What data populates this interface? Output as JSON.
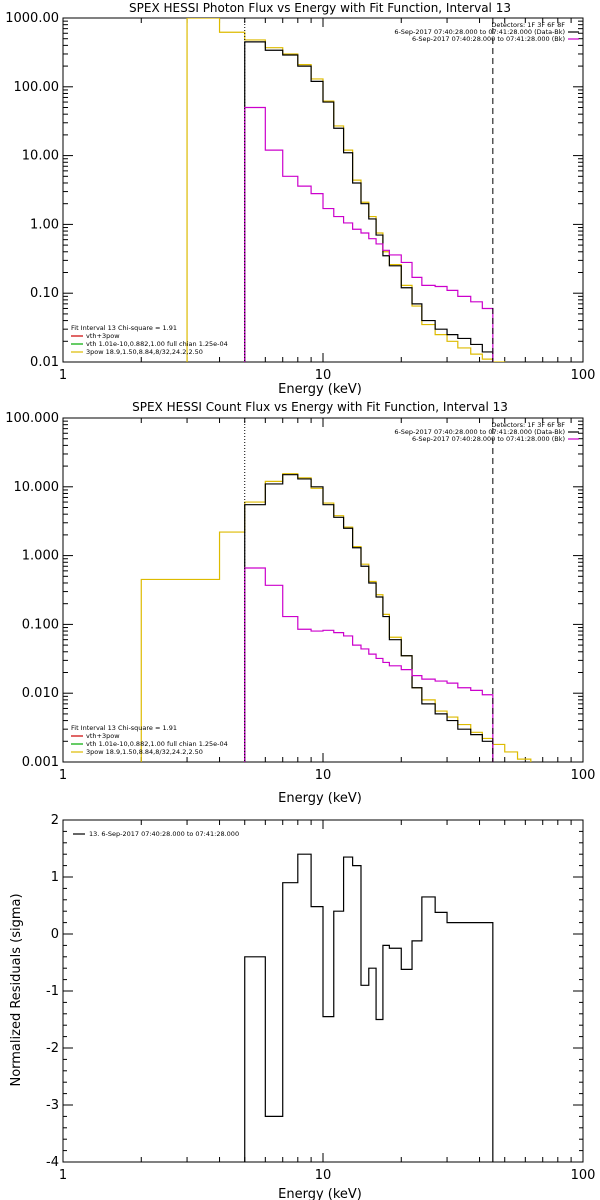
{
  "chart_data": [
    {
      "type": "line",
      "step": true,
      "title": "SPEX HESSI Photon Flux vs Energy with Fit Function, Interval 13",
      "xlabel": "Energy (keV)",
      "ylabel": "",
      "xscale": "log",
      "yscale": "log",
      "xlim": [
        1,
        100
      ],
      "ylim": [
        0.01,
        1000
      ],
      "xticks": [
        1,
        10,
        100
      ],
      "xticklabels": [
        "1",
        "10",
        "100"
      ],
      "yticks": [
        0.01,
        0.1,
        1,
        10,
        100,
        1000
      ],
      "yticklabels": [
        "0.01",
        "0.10",
        "1.00",
        "10.00",
        "100.00",
        "1000.00"
      ],
      "vlines": [
        {
          "x": 5.0,
          "style": "dotted",
          "color": "#000000"
        },
        {
          "x": 45.0,
          "style": "dashed",
          "color": "#000000"
        }
      ],
      "legend_top": [
        "Detectors: 1F 3F 6F 8F",
        "6-Sep-2017 07:40:28.000 to 07:41:28.000 (Data-Bk)",
        "6-Sep-2017 07:40:28.000 to 07:41:28.000 (Bk)"
      ],
      "legend_top_colors": [
        "#000000",
        "#000000",
        "#cc00cc"
      ],
      "legend_bottom": [
        {
          "text": "Fit Interval 13   Chi-square = 1.91",
          "color": ""
        },
        {
          "text": "vth+3pow",
          "color": "#cc0000"
        },
        {
          "text": "vth 1.01e-10,0.882,1.00  full chian 1.25e-04",
          "color": "#00aa00"
        },
        {
          "text": "3pow 18.9,1.50,8.84,8/32,24.2,2.50",
          "color": "#ddbb00"
        }
      ],
      "series": [
        {
          "name": "6-Sep-2017 07:40:28.000 to 07:41:28.000 (Data-Bk)",
          "color": "#000000",
          "edges": [
            5.0,
            6.0,
            7.0,
            8.0,
            9.0,
            10.0,
            11.0,
            12.0,
            13.0,
            14.0,
            15.0,
            16.0,
            17.0,
            18.0,
            20.0,
            22.0,
            24.0,
            27.0,
            30.0,
            33.0,
            37.0,
            41.0,
            45.0
          ],
          "values": [
            450,
            340,
            290,
            200,
            120,
            60,
            25,
            11,
            4.0,
            2.0,
            1.2,
            0.7,
            0.35,
            0.25,
            0.12,
            0.07,
            0.04,
            0.03,
            0.025,
            0.022,
            0.018,
            0.014
          ]
        },
        {
          "name": "6-Sep-2017 07:40:28.000 to 07:41:28.000 (Bk)",
          "color": "#cc00cc",
          "edges": [
            5.0,
            6.0,
            7.0,
            8.0,
            9.0,
            10.0,
            11.0,
            12.0,
            13.0,
            14.0,
            15.0,
            16.0,
            17.0,
            18.0,
            20.0,
            22.0,
            24.0,
            27.0,
            30.0,
            33.0,
            37.0,
            41.0,
            45.0
          ],
          "values": [
            50,
            12,
            5.0,
            3.6,
            2.8,
            1.7,
            1.3,
            1.05,
            0.85,
            0.75,
            0.62,
            0.52,
            0.42,
            0.36,
            0.28,
            0.17,
            0.13,
            0.125,
            0.11,
            0.09,
            0.075,
            0.06
          ]
        },
        {
          "name": "3pow",
          "color": "#ddbb00",
          "edges": [
            3.0,
            4.0,
            5.0,
            6.0,
            7.0,
            8.0,
            9.0,
            10.0,
            11.0,
            12.0,
            13.0,
            14.0,
            15.0,
            16.0,
            17.0,
            18.0,
            20.0,
            22.0,
            24.0,
            27.0,
            30.0,
            33.0,
            37.0,
            41.0,
            45.0,
            50.0
          ],
          "values": [
            1000,
            620,
            480,
            370,
            300,
            210,
            130,
            62,
            27,
            12,
            4.4,
            2.1,
            1.3,
            0.75,
            0.4,
            0.26,
            0.13,
            0.065,
            0.035,
            0.025,
            0.02,
            0.016,
            0.013,
            0.011,
            0.01
          ]
        }
      ]
    },
    {
      "type": "line",
      "step": true,
      "title": "SPEX HESSI Count Flux vs Energy with Fit Function, Interval 13",
      "xlabel": "Energy (keV)",
      "ylabel": "",
      "xscale": "log",
      "yscale": "log",
      "xlim": [
        1,
        100
      ],
      "ylim": [
        0.001,
        100
      ],
      "xticks": [
        1,
        10,
        100
      ],
      "xticklabels": [
        "1",
        "10",
        "100"
      ],
      "yticks": [
        0.001,
        0.01,
        0.1,
        1,
        10,
        100
      ],
      "yticklabels": [
        "0.001",
        "0.010",
        "0.100",
        "1.000",
        "10.000",
        "100.000"
      ],
      "vlines": [
        {
          "x": 5.0,
          "style": "dotted",
          "color": "#000000"
        },
        {
          "x": 45.0,
          "style": "dashed",
          "color": "#000000"
        }
      ],
      "legend_top": [
        "Detectors: 1F 3F 6F 8F",
        "6-Sep-2017 07:40:28.000 to 07:41:28.000 (Data-Bk)",
        "6-Sep-2017 07:40:28.000 to 07:41:28.000 (Bk)"
      ],
      "legend_top_colors": [
        "#000000",
        "#000000",
        "#cc00cc"
      ],
      "legend_bottom": [
        {
          "text": "Fit Interval 13   Chi-square = 1.91",
          "color": ""
        },
        {
          "text": "vth+3pow",
          "color": "#cc0000"
        },
        {
          "text": "vth 1.01e-10,0.882,1.00  full chian 1.25e-04",
          "color": "#00aa00"
        },
        {
          "text": "3pow 18.9,1.50,8.84,8/32,24.2,2.50",
          "color": "#ddbb00"
        }
      ],
      "series": [
        {
          "name": "6-Sep-2017 07:40:28.000 to 07:41:28.000 (Data-Bk)",
          "color": "#000000",
          "edges": [
            5.0,
            6.0,
            7.0,
            8.0,
            9.0,
            10.0,
            11.0,
            12.0,
            13.0,
            14.0,
            15.0,
            16.0,
            17.0,
            18.0,
            20.0,
            22.0,
            24.0,
            27.0,
            30.0,
            33.0,
            37.0,
            41.0,
            45.0
          ],
          "values": [
            5.5,
            11,
            15,
            13,
            10,
            5.5,
            3.6,
            2.5,
            1.3,
            0.7,
            0.4,
            0.25,
            0.13,
            0.06,
            0.035,
            0.012,
            0.007,
            0.005,
            0.004,
            0.003,
            0.0025,
            0.002
          ]
        },
        {
          "name": "6-Sep-2017 07:40:28.000 to 07:41:28.000 (Bk)",
          "color": "#cc00cc",
          "edges": [
            5.0,
            6.0,
            7.0,
            8.0,
            9.0,
            10.0,
            11.0,
            12.0,
            13.0,
            14.0,
            15.0,
            16.0,
            17.0,
            18.0,
            20.0,
            22.0,
            24.0,
            27.0,
            30.0,
            33.0,
            37.0,
            41.0,
            45.0
          ],
          "values": [
            0.66,
            0.37,
            0.13,
            0.085,
            0.08,
            0.082,
            0.076,
            0.068,
            0.05,
            0.044,
            0.037,
            0.032,
            0.028,
            0.025,
            0.022,
            0.018,
            0.016,
            0.015,
            0.014,
            0.012,
            0.011,
            0.0095
          ]
        },
        {
          "name": "3pow",
          "color": "#ddbb00",
          "edges": [
            2.0,
            3.0,
            4.0,
            5.0,
            6.0,
            7.0,
            8.0,
            9.0,
            10.0,
            11.0,
            12.0,
            13.0,
            14.0,
            15.0,
            16.0,
            17.0,
            18.0,
            20.0,
            22.0,
            24.0,
            27.0,
            30.0,
            33.0,
            37.0,
            41.0,
            45.0,
            50.0,
            56.0,
            63.0
          ],
          "values": [
            0.45,
            0.45,
            2.2,
            6.0,
            12,
            15.5,
            13.5,
            9.5,
            5.8,
            3.8,
            2.6,
            1.35,
            0.75,
            0.42,
            0.27,
            0.14,
            0.065,
            0.035,
            0.012,
            0.008,
            0.0055,
            0.0045,
            0.0035,
            0.0027,
            0.0022,
            0.0018,
            0.0014,
            0.0011
          ]
        }
      ]
    },
    {
      "type": "line",
      "step": true,
      "title": "",
      "xlabel": "Energy (keV)",
      "ylabel": "Normalized Residuals (sigma)",
      "xscale": "log",
      "yscale": "linear",
      "xlim": [
        1,
        100
      ],
      "ylim": [
        -4,
        2
      ],
      "xticks": [
        1,
        10,
        100
      ],
      "xticklabels": [
        "1",
        "10",
        "100"
      ],
      "yticks": [
        -4,
        -3,
        -2,
        -1,
        0,
        1,
        2
      ],
      "yticklabels": [
        "-4",
        "-3",
        "-2",
        "-1",
        "0",
        "1",
        "2"
      ],
      "vlines": [],
      "legend_top": [],
      "legend_left": "13.  6-Sep-2017 07:40:28.000 to 07:41:28.000",
      "series": [
        {
          "name": "13.  6-Sep-2017 07:40:28.000 to 07:41:28.000",
          "color": "#000000",
          "edges": [
            5.0,
            6.0,
            7.0,
            8.0,
            9.0,
            10.0,
            11.0,
            12.0,
            13.0,
            14.0,
            15.0,
            16.0,
            17.0,
            18.0,
            20.0,
            22.0,
            24.0,
            27.0,
            30.0,
            33.0,
            37.0,
            41.0,
            45.0
          ],
          "values": [
            -0.4,
            -3.2,
            0.9,
            1.4,
            0.48,
            -1.45,
            0.4,
            1.35,
            1.2,
            -0.9,
            -0.6,
            -1.5,
            -0.2,
            -0.25,
            -0.62,
            -0.12,
            0.65,
            0.38,
            0.2,
            0.2,
            0.2,
            0.2
          ],
          "drop_to_bottom": true
        }
      ]
    }
  ]
}
